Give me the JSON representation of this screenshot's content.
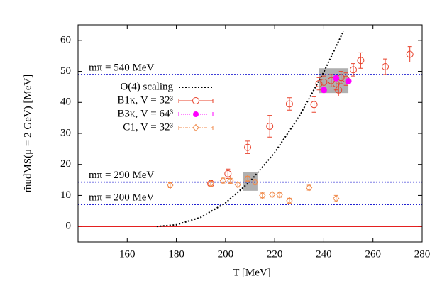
{
  "chart_data": {
    "type": "scatter",
    "x_label": "T [MeV]",
    "y_label": "m̄udMS(μ = 2 GeV) [MeV]",
    "xlim": [
      140,
      280
    ],
    "xticks": [
      160,
      180,
      200,
      220,
      240,
      260,
      280
    ],
    "ylim": [
      -5,
      65
    ],
    "yticks": [
      0,
      10,
      20,
      30,
      40,
      50,
      60
    ],
    "legend": "upper-left",
    "reference_lines": [
      {
        "label": "mπ = 540 MeV",
        "value": 49,
        "color": "#0000cc",
        "style": "dotted"
      },
      {
        "label": "mπ = 290 MeV",
        "value": 14.3,
        "color": "#0000cc",
        "style": "dotted"
      },
      {
        "label": "mπ = 200 MeV",
        "value": 7.1,
        "color": "#0000cc",
        "style": "dotted"
      },
      {
        "value": 0,
        "color": "#e00000",
        "style": "solid"
      }
    ],
    "shaded_regions": [
      {
        "x": [
          207,
          213
        ],
        "y": [
          11.5,
          17.5
        ],
        "color": "#b0b0b0"
      },
      {
        "x": [
          238,
          250
        ],
        "y": [
          43,
          51
        ],
        "color": "#b0b0b0"
      }
    ],
    "series": [
      {
        "name": "O(4) scaling",
        "color": "#000000",
        "marker": "none",
        "line": "dotted",
        "x": [
          172,
          180,
          190,
          200,
          210,
          220,
          230,
          240,
          248
        ],
        "values": [
          0,
          0.53,
          2.97,
          7.59,
          14.5,
          23.8,
          35.5,
          49.8,
          63.0
        ]
      },
      {
        "name": "B1κ, V = 32³",
        "color": "#e8402a",
        "marker": "circle",
        "x": [
          194,
          201,
          209,
          218,
          226,
          236,
          238,
          240,
          243,
          245,
          246,
          247,
          249,
          252,
          255,
          265,
          275
        ],
        "values": [
          13.8,
          17,
          25.5,
          32.3,
          39.5,
          39.3,
          46,
          46.5,
          47,
          46,
          44,
          48,
          47.5,
          50.5,
          53.5,
          51.5,
          55.5
        ],
        "errors": [
          1,
          1.5,
          2,
          3.5,
          2,
          2.5,
          2,
          2,
          2,
          2,
          2,
          2,
          2,
          2,
          2.5,
          2.5,
          2.5
        ]
      },
      {
        "name": "B3κ, V = 64³",
        "color": "#ff00ff",
        "marker": "filled-circle",
        "x": [
          240,
          245,
          250
        ],
        "values": [
          44,
          47.8,
          46.8
        ]
      },
      {
        "name": "C1, V = 32³",
        "color": "#f08a4b",
        "marker": "diamond",
        "x": [
          177.5,
          194,
          199,
          202,
          205,
          209,
          212,
          215,
          219,
          222,
          226,
          234,
          245
        ],
        "values": [
          13.3,
          13.8,
          14.8,
          14.7,
          13.5,
          15.4,
          14.3,
          10,
          10.3,
          10.2,
          8.3,
          12.5,
          9
        ],
        "errors": [
          0.8,
          0.8,
          0.8,
          0.8,
          0.8,
          0.8,
          0.8,
          0.8,
          0.8,
          0.8,
          0.8,
          0.8,
          1
        ]
      }
    ]
  }
}
